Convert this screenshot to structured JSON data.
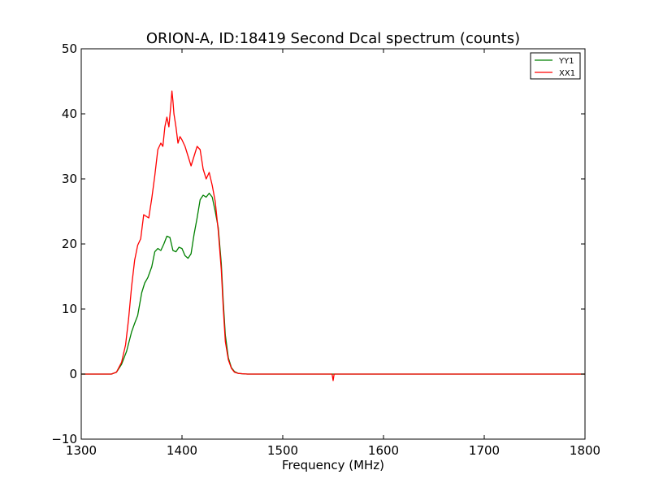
{
  "chart_data": {
    "type": "line",
    "title": "ORION-A, ID:18419 Second Dcal spectrum (counts)",
    "xlabel": "Frequency (MHz)",
    "ylabel": "",
    "xlim": [
      1300,
      1800
    ],
    "ylim": [
      -10,
      50
    ],
    "xticks": [
      1300,
      1400,
      1500,
      1600,
      1700,
      1800
    ],
    "xtick_labels": [
      "1300",
      "1400",
      "1500",
      "1600",
      "1700",
      "1800"
    ],
    "yticks": [
      -10,
      0,
      10,
      20,
      30,
      40,
      50
    ],
    "ytick_labels": [
      "−10",
      "0",
      "10",
      "20",
      "30",
      "40",
      "50"
    ],
    "grid": false,
    "legend_position": "top-right",
    "series": [
      {
        "name": "YY1",
        "color": "#008000",
        "x": [
          1300,
          1330,
          1335,
          1340,
          1345,
          1350,
          1353,
          1356,
          1360,
          1363,
          1366,
          1370,
          1373,
          1376,
          1379,
          1382,
          1385,
          1388,
          1391,
          1394,
          1397,
          1400,
          1403,
          1406,
          1409,
          1412,
          1415,
          1418,
          1421,
          1424,
          1427,
          1430,
          1433,
          1436,
          1439,
          1441,
          1443,
          1446,
          1449,
          1452,
          1456,
          1460,
          1465,
          1470,
          1480,
          1500,
          1550,
          1600,
          1650,
          1700,
          1750,
          1800
        ],
        "y": [
          0,
          0,
          0.3,
          1.5,
          3.5,
          6.5,
          7.8,
          9.0,
          12.5,
          14.0,
          14.8,
          16.5,
          18.8,
          19.3,
          19.0,
          20.0,
          21.2,
          21.0,
          19.0,
          18.8,
          19.5,
          19.3,
          18.2,
          17.8,
          18.5,
          21.5,
          24.0,
          26.8,
          27.5,
          27.2,
          27.8,
          27.2,
          25.0,
          22.5,
          17.0,
          11.0,
          6.0,
          2.5,
          1.0,
          0.4,
          0.1,
          0.05,
          0,
          0,
          0,
          0,
          0,
          0,
          0,
          0,
          0,
          0
        ]
      },
      {
        "name": "XX1",
        "color": "#ff0000",
        "x": [
          1300,
          1330,
          1335,
          1340,
          1344,
          1347,
          1350,
          1353,
          1356,
          1359,
          1362,
          1365,
          1367,
          1370,
          1373,
          1376,
          1379,
          1381,
          1383,
          1385,
          1387,
          1389,
          1390,
          1391,
          1392,
          1394,
          1396,
          1398,
          1400,
          1403,
          1406,
          1409,
          1412,
          1415,
          1418,
          1421,
          1424,
          1427,
          1430,
          1433,
          1436,
          1439,
          1441,
          1443,
          1446,
          1449,
          1452,
          1456,
          1460,
          1465,
          1470,
          1480,
          1500,
          1549,
          1550,
          1551,
          1552,
          1600,
          1650,
          1700,
          1750,
          1800
        ],
        "y": [
          0,
          0,
          0.3,
          1.8,
          4.5,
          8.5,
          13.5,
          17.5,
          19.8,
          20.8,
          24.5,
          24.2,
          24.0,
          27.0,
          30.5,
          34.5,
          35.5,
          35.0,
          38.0,
          39.5,
          38.0,
          41.5,
          43.5,
          42.0,
          40.0,
          38.0,
          35.5,
          36.5,
          36.0,
          35.0,
          33.5,
          32.0,
          33.5,
          35.0,
          34.5,
          31.5,
          30.0,
          31.0,
          29.0,
          26.5,
          22.0,
          16.0,
          10.0,
          5.0,
          2.2,
          0.9,
          0.3,
          0.1,
          0.05,
          0,
          0,
          0,
          0,
          0,
          -1.0,
          0,
          0,
          0,
          0,
          0,
          0,
          0
        ]
      }
    ]
  }
}
